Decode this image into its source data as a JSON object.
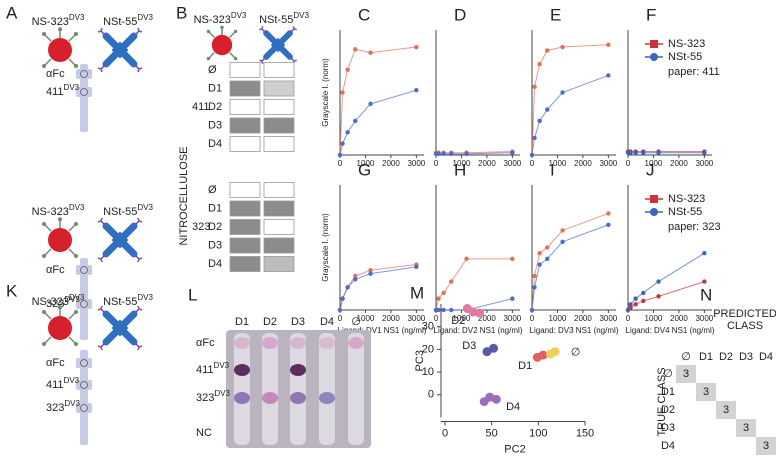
{
  "schematic_A": {
    "label": "A",
    "groups": [
      {
        "molecules": [
          {
            "name": "NS-323",
            "sup": "DV3"
          },
          {
            "name": "NSt-55",
            "sup": "DV3"
          }
        ],
        "spots": [
          {
            "name": "αFc"
          },
          {
            "name": "411",
            "sup": "DV3"
          }
        ]
      },
      {
        "molecules": [
          {
            "name": "NS-323",
            "sup": "DV3"
          },
          {
            "name": "NSt-55",
            "sup": "DV3"
          }
        ],
        "spots": [
          {
            "name": "αFc"
          },
          {
            "name": "323",
            "sup": "DV3"
          }
        ]
      }
    ]
  },
  "panel_B": {
    "label": "B",
    "molecules": [
      {
        "name": "NS-323",
        "sup": "DV3"
      },
      {
        "name": "NSt-55",
        "sup": "DV3"
      }
    ],
    "axis_label": "NITROCELLULOSE",
    "groups": [
      {
        "name": "411",
        "rows": [
          "Ø",
          "D1",
          "D2",
          "D3",
          "D4"
        ],
        "cells": [
          [
            "#ffffff",
            "#ffffff"
          ],
          [
            "#8c8c8c",
            "#cfcfcf"
          ],
          [
            "#ffffff",
            "#ffffff"
          ],
          [
            "#8c8c8c",
            "#8c8c8c"
          ],
          [
            "#ffffff",
            "#ffffff"
          ]
        ]
      },
      {
        "name": "323",
        "rows": [
          "Ø",
          "D1",
          "D2",
          "D3",
          "D4"
        ],
        "cells": [
          [
            "#ffffff",
            "#ffffff"
          ],
          [
            "#8c8c8c",
            "#8c8c8c"
          ],
          [
            "#8c8c8c",
            "#ffffff"
          ],
          [
            "#8c8c8c",
            "#8c8c8c"
          ],
          [
            "#8c8c8c",
            "#bdbdbd"
          ]
        ]
      }
    ]
  },
  "chart_data": [
    {
      "type": "line",
      "panel": "C",
      "ylabel": "Grayscale I. (norm)",
      "x": [
        0,
        100,
        300,
        600,
        1200,
        3000
      ],
      "xlim": [
        0,
        3300
      ],
      "xticks": [
        0,
        1000,
        2000,
        3000
      ],
      "ylim": [
        0,
        1.1
      ],
      "series": [
        {
          "color": "#e0705a",
          "values": [
            0,
            0.55,
            0.75,
            0.93,
            0.9,
            0.95
          ]
        },
        {
          "color": "#4b6cc8",
          "values": [
            0,
            0.1,
            0.2,
            0.3,
            0.45,
            0.57
          ]
        }
      ]
    },
    {
      "type": "line",
      "panel": "D",
      "x": [
        0,
        100,
        300,
        600,
        1200,
        3000
      ],
      "xlim": [
        0,
        3300
      ],
      "xticks": [
        0,
        1000,
        2000,
        3000
      ],
      "ylim": [
        0,
        1.1
      ],
      "series": [
        {
          "color": "#e0705a",
          "values": [
            0.02,
            0.02,
            0.02,
            0.02,
            0.02,
            0.03
          ]
        },
        {
          "color": "#4b6cc8",
          "values": [
            0.01,
            0.01,
            0.01,
            0.01,
            0.01,
            0.02
          ]
        }
      ]
    },
    {
      "type": "line",
      "panel": "E",
      "x": [
        0,
        100,
        300,
        600,
        1200,
        3000
      ],
      "xlim": [
        0,
        3300
      ],
      "xticks": [
        0,
        1000,
        2000,
        3000
      ],
      "ylim": [
        0,
        1.1
      ],
      "series": [
        {
          "color": "#e0705a",
          "values": [
            0,
            0.6,
            0.8,
            0.92,
            0.95,
            0.97
          ]
        },
        {
          "color": "#4b6cc8",
          "values": [
            0,
            0.15,
            0.3,
            0.4,
            0.55,
            0.7
          ]
        }
      ]
    },
    {
      "type": "line",
      "panel": "F",
      "legend": true,
      "legend_note": "paper: 411",
      "x": [
        0,
        100,
        300,
        600,
        1200,
        3000
      ],
      "xlim": [
        0,
        3300
      ],
      "xticks": [
        0,
        1000,
        2000,
        3000
      ],
      "ylim": [
        0,
        1.1
      ],
      "series": [
        {
          "name": "NS-323",
          "color": "#c8333c",
          "values": [
            0.03,
            0.03,
            0.03,
            0.03,
            0.03,
            0.03
          ]
        },
        {
          "name": "NSt-55",
          "color": "#3a66b8",
          "values": [
            0.02,
            0.02,
            0.02,
            0.02,
            0.02,
            0.02
          ]
        }
      ]
    },
    {
      "type": "line",
      "panel": "G",
      "ylabel": "Grayscale I. (norm)",
      "xlabel": "Ligand: DV1 NS1 (ng/ml)",
      "x": [
        0,
        100,
        300,
        600,
        1200,
        3000
      ],
      "xlim": [
        0,
        3300
      ],
      "xticks": [
        0,
        1000,
        2000,
        3000
      ],
      "ylim": [
        0,
        1.1
      ],
      "series": [
        {
          "color": "#e0705a",
          "values": [
            0,
            0.1,
            0.2,
            0.3,
            0.35,
            0.4
          ]
        },
        {
          "color": "#4b6cc8",
          "values": [
            0,
            0.1,
            0.2,
            0.27,
            0.32,
            0.38
          ]
        }
      ]
    },
    {
      "type": "line",
      "panel": "H",
      "xlabel": "Ligand: DV2 NS1 (ng/ml)",
      "x": [
        0,
        100,
        300,
        600,
        1200,
        3000
      ],
      "xlim": [
        0,
        3300
      ],
      "xticks": [
        0,
        1000,
        2000,
        3000
      ],
      "ylim": [
        0,
        1.1
      ],
      "series": [
        {
          "color": "#e0705a",
          "values": [
            0,
            0.1,
            0.15,
            0.25,
            0.45,
            0.45
          ]
        },
        {
          "color": "#4b6cc8",
          "values": [
            0,
            0,
            0,
            0,
            0,
            0.1
          ]
        }
      ]
    },
    {
      "type": "line",
      "panel": "I",
      "xlabel": "Ligand: DV3 NS1 (ng/ml)",
      "x": [
        0,
        100,
        300,
        600,
        1200,
        3000
      ],
      "xlim": [
        0,
        3300
      ],
      "xticks": [
        0,
        1000,
        2000,
        3000
      ],
      "ylim": [
        0,
        1.1
      ],
      "series": [
        {
          "color": "#e0705a",
          "values": [
            0,
            0.3,
            0.5,
            0.55,
            0.7,
            0.85
          ]
        },
        {
          "color": "#4b6cc8",
          "values": [
            0,
            0.2,
            0.4,
            0.45,
            0.6,
            0.75
          ]
        }
      ]
    },
    {
      "type": "line",
      "panel": "J",
      "xlabel": "Ligand: DV4 NS1 (ng/ml)",
      "legend": true,
      "legend_note": "paper: 323",
      "x": [
        0,
        100,
        300,
        600,
        1200,
        3000
      ],
      "xlim": [
        0,
        3300
      ],
      "xticks": [
        0,
        1000,
        2000,
        3000
      ],
      "ylim": [
        0,
        1.1
      ],
      "series": [
        {
          "name": "NS-323",
          "color": "#c8333c",
          "values": [
            0,
            0.02,
            0.05,
            0.08,
            0.12,
            0.25
          ]
        },
        {
          "name": "NSt-55",
          "color": "#3a66b8",
          "values": [
            0,
            0.05,
            0.1,
            0.15,
            0.25,
            0.5
          ]
        }
      ]
    },
    {
      "type": "scatter",
      "panel": "M",
      "xlabel": "PC2",
      "ylabel": "PC3",
      "xlim": [
        0,
        150
      ],
      "xticks": [
        0,
        50,
        100,
        150
      ],
      "ylim": [
        -10,
        40
      ],
      "yticks": [
        0,
        10,
        20,
        30
      ],
      "series": [
        {
          "name": "D2",
          "color": "#e07aa0",
          "x": [
            24,
            30,
            37
          ],
          "values": [
            38,
            36.5,
            36
          ]
        },
        {
          "name": "D3",
          "color": "#5b57a8",
          "x": [
            45,
            52
          ],
          "values": [
            19,
            20.5
          ]
        },
        {
          "name": "D1",
          "color": "#e0605e",
          "x": [
            99,
            105
          ],
          "values": [
            16.5,
            17.5
          ]
        },
        {
          "name": "∅",
          "color": "#f2cf5a",
          "x": [
            113,
            118
          ],
          "values": [
            18,
            19
          ]
        },
        {
          "name": "D4",
          "color": "#9b70b8",
          "x": [
            42,
            48,
            55
          ],
          "values": [
            -3,
            -1,
            -2
          ]
        }
      ]
    }
  ],
  "schematic_K": {
    "label": "K",
    "molecules": [
      {
        "name": "NS-323",
        "sup": "DV3"
      },
      {
        "name": "NSt-55",
        "sup": "DV3"
      }
    ],
    "spots": [
      {
        "name": "αFc"
      },
      {
        "name": "411",
        "sup": "DV3"
      },
      {
        "name": "323",
        "sup": "DV3"
      }
    ]
  },
  "panel_L": {
    "label": "L",
    "columns": [
      "D1",
      "D2",
      "D3",
      "D4",
      "∅"
    ],
    "rows": [
      {
        "name": "αFc"
      },
      {
        "name": "411",
        "sup": "DV3"
      },
      {
        "name": "323",
        "sup": "DV3"
      },
      {
        "name": "NC"
      }
    ],
    "spot_colors": [
      [
        "#d7b7cf",
        "#d3aacb",
        "#d7b7cf",
        "#d8bdd2",
        "#d3aacb"
      ],
      [
        "#5e2c5e",
        null,
        "#5e2c5e",
        null,
        null
      ],
      [
        "#8d78b2",
        "#c28ab8",
        "#8d78b2",
        "#8f84bb",
        null
      ],
      [
        null,
        null,
        null,
        null,
        null
      ]
    ]
  },
  "panel_N": {
    "label": "N",
    "title": [
      "PREDICTED",
      "CLASS"
    ],
    "ylabel": "TRUE CLASS",
    "classes": [
      "∅",
      "D1",
      "D2",
      "D3",
      "D4"
    ],
    "matrix": [
      [
        3,
        null,
        null,
        null,
        null
      ],
      [
        null,
        3,
        null,
        null,
        null
      ],
      [
        null,
        null,
        3,
        null,
        null
      ],
      [
        null,
        null,
        null,
        3,
        null
      ],
      [
        null,
        null,
        null,
        null,
        3
      ]
    ]
  }
}
